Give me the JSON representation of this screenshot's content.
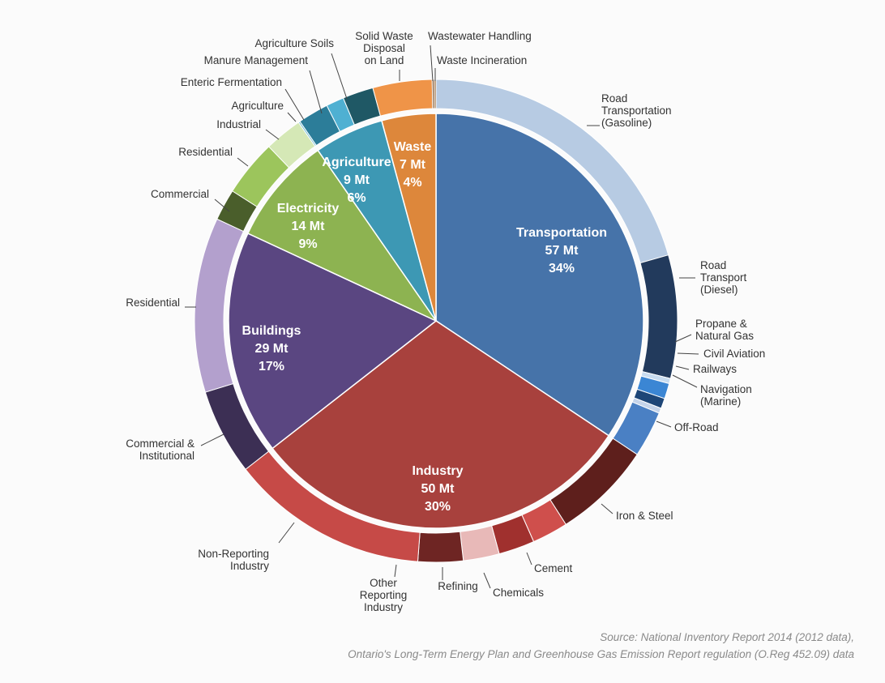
{
  "chart_data": {
    "type": "pie",
    "unit": "Mt",
    "categories": [
      {
        "name": "Transportation",
        "value_mt": 57,
        "percent": "34%",
        "value_label": "57 Mt",
        "percent_label": "34%",
        "color": "#4673a9",
        "subcategories": [
          {
            "name": "Road Transportation (Gasoline)",
            "lines": [
              "Road",
              "Transportation",
              "(Gasoline)"
            ],
            "fraction": 0.6,
            "color": "#b7cbe3"
          },
          {
            "name": "Road Transport (Diesel)",
            "lines": [
              "Road",
              "Transport",
              "(Diesel)"
            ],
            "fraction": 0.24,
            "color": "#223a5c"
          },
          {
            "name": "Propane & Natural Gas",
            "lines": [
              "Propane &",
              "Natural Gas"
            ],
            "fraction": 0.01,
            "color": "#c8dcf0"
          },
          {
            "name": "Civil Aviation",
            "lines": [
              "Civil Aviation"
            ],
            "fraction": 0.03,
            "color": "#3b86d4"
          },
          {
            "name": "Railways",
            "lines": [
              "Railways"
            ],
            "fraction": 0.02,
            "color": "#1e4677"
          },
          {
            "name": "Navigation (Marine)",
            "lines": [
              "Navigation",
              "(Marine)"
            ],
            "fraction": 0.01,
            "color": "#c5d4ea"
          },
          {
            "name": "Off-Road",
            "lines": [
              "Off-Road"
            ],
            "fraction": 0.09,
            "color": "#4a80c4"
          }
        ]
      },
      {
        "name": "Industry",
        "value_mt": 50,
        "percent": "30%",
        "value_label": "50 Mt",
        "percent_label": "30%",
        "color": "#a8413d",
        "subcategories": [
          {
            "name": "Iron & Steel",
            "lines": [
              "Iron & Steel"
            ],
            "fraction": 0.22,
            "color": "#5e1f1c"
          },
          {
            "name": "Cement",
            "lines": [
              "Cement"
            ],
            "fraction": 0.08,
            "color": "#cf4f4c"
          },
          {
            "name": "Chemicals",
            "lines": [
              "Chemicals"
            ],
            "fraction": 0.08,
            "color": "#a0302e"
          },
          {
            "name": "Refining",
            "lines": [
              "Refining"
            ],
            "fraction": 0.08,
            "color": "#e8b9b8"
          },
          {
            "name": "Other Reporting Industry",
            "lines": [
              "Other",
              "Reporting",
              "Industry"
            ],
            "fraction": 0.1,
            "color": "#6e2523"
          },
          {
            "name": "Non-Reporting Industry",
            "lines": [
              "Non-Reporting",
              "Industry"
            ],
            "fraction": 0.44,
            "color": "#c64a47"
          }
        ]
      },
      {
        "name": "Buildings",
        "value_mt": 29,
        "percent": "17%",
        "value_label": "29 Mt",
        "percent_label": "17%",
        "color": "#5a4681",
        "subcategories": [
          {
            "name": "Commercial & Institutional",
            "lines": [
              "Commercial &",
              "Institutional"
            ],
            "fraction": 0.33,
            "color": "#3c2f54"
          },
          {
            "name": "Residential",
            "lines": [
              "Residential"
            ],
            "fraction": 0.67,
            "color": "#b3a0cd"
          }
        ]
      },
      {
        "name": "Electricity",
        "value_mt": 14,
        "percent": "9%",
        "value_label": "14 Mt",
        "percent_label": "9%",
        "color": "#8db351",
        "subcategories": [
          {
            "name": "Commercial",
            "lines": [
              "Commercial"
            ],
            "fraction": 0.25,
            "color": "#4a5e2b"
          },
          {
            "name": "Residential",
            "lines": [
              "Residential"
            ],
            "fraction": 0.45,
            "color": "#9cc55c"
          },
          {
            "name": "Industrial",
            "lines": [
              "Industrial"
            ],
            "fraction": 0.3,
            "color": "#d5e8b6"
          }
        ]
      },
      {
        "name": "Agriculture",
        "value_mt": 9,
        "percent": "6%",
        "value_label": "9 Mt",
        "percent_label": "6%",
        "color": "#3d98b4",
        "subcategories": [
          {
            "name": "Agriculture",
            "lines": [
              "Agriculture"
            ],
            "fraction": 0.02,
            "color": "#6bbad3"
          },
          {
            "name": "Enteric Fermentation",
            "lines": [
              "Enteric Fermentation"
            ],
            "fraction": 0.38,
            "color": "#2c7d99"
          },
          {
            "name": "Manure Management",
            "lines": [
              "Manure Management"
            ],
            "fraction": 0.22,
            "color": "#4fb0d2"
          },
          {
            "name": "Agriculture Soils",
            "lines": [
              "Agriculture Soils"
            ],
            "fraction": 0.38,
            "color": "#1f5865"
          }
        ]
      },
      {
        "name": "Waste",
        "value_mt": 7,
        "percent": "4%",
        "value_label": "7 Mt",
        "percent_label": "4%",
        "color": "#dd873b",
        "subcategories": [
          {
            "name": "Solid Waste Disposal on Land",
            "lines": [
              "Solid Waste",
              "Disposal",
              "on Land"
            ],
            "fraction": 0.94,
            "color": "#ef9448"
          },
          {
            "name": "Waste Incineration",
            "lines": [
              "Waste Incineration"
            ],
            "fraction": 0.03,
            "color": "#7a4f2a"
          },
          {
            "name": "Wastewater Handling",
            "lines": [
              "Wastewater Handling"
            ],
            "fraction": 0.03,
            "color": "#9a6a3a"
          }
        ]
      }
    ]
  },
  "source": {
    "line1": "Source: National Inventory Report 2014 (2012 data),",
    "line2": "Ontario's Long-Term Energy Plan and Greenhouse Gas Emission Report regulation (O.Reg 452.09) data"
  }
}
